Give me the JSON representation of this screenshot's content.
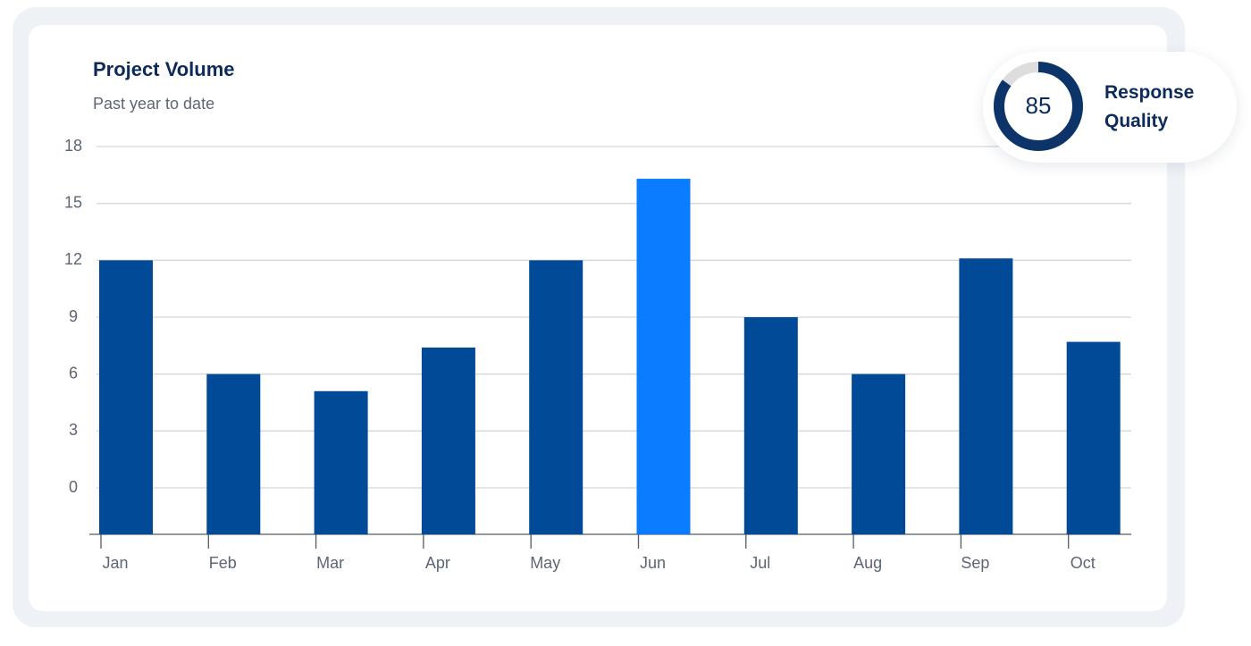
{
  "chart_data": {
    "type": "bar",
    "title": "Project Volume",
    "subtitle": "Past year to date",
    "categories": [
      "Jan",
      "Feb",
      "Mar",
      "Apr",
      "May",
      "Jun",
      "Jul",
      "Aug",
      "Sep",
      "Oct"
    ],
    "values": [
      12,
      6,
      5.1,
      7.4,
      12,
      16.3,
      9,
      6,
      12.1,
      7.7
    ],
    "colors": [
      "#004a98",
      "#004a98",
      "#004a98",
      "#004a98",
      "#004a98",
      "#0a7cff",
      "#004a98",
      "#004a98",
      "#004a98",
      "#004a98"
    ],
    "ylim": [
      -2.45,
      18
    ],
    "yticks": [
      0,
      3,
      6,
      9,
      12,
      15,
      18
    ],
    "grid": true,
    "gauge": {
      "value": 85,
      "max": 100,
      "label": "Response Quality",
      "color": "#0d3469",
      "track_color": "#dddddd"
    }
  }
}
